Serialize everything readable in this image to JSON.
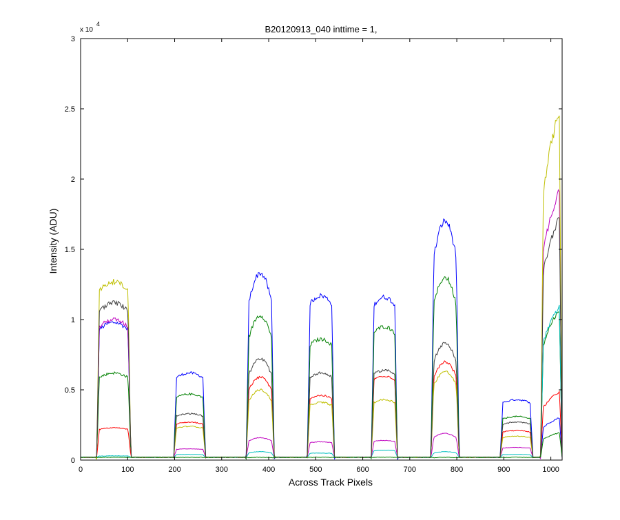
{
  "chart_data": {
    "type": "line",
    "title": "B20120913_040 inttime = 1,",
    "xlabel": "Across Track Pixels",
    "ylabel": "Intensity (ADU)",
    "y_multiplier_label": "x 10",
    "y_multiplier_exponent": "4",
    "xlim": [
      0,
      1024
    ],
    "ylim": [
      0,
      3
    ],
    "xticks": [
      0,
      100,
      200,
      300,
      400,
      500,
      600,
      700,
      800,
      900,
      1000
    ],
    "yticks": [
      0,
      0.5,
      1,
      1.5,
      2,
      2.5,
      3
    ],
    "ytick_labels": [
      "0",
      "0.5",
      "1",
      "1.5",
      "2",
      "2.5",
      "3"
    ],
    "baseline": 0.02,
    "blocks": [
      {
        "x0": 34,
        "x1": 107,
        "shape": "flat"
      },
      {
        "x0": 198,
        "x1": 266,
        "shape": "flat"
      },
      {
        "x0": 352,
        "x1": 412,
        "shape": "peak"
      },
      {
        "x0": 482,
        "x1": 540,
        "shape": "flat"
      },
      {
        "x0": 618,
        "x1": 674,
        "shape": "flat"
      },
      {
        "x0": 745,
        "x1": 805,
        "shape": "peak"
      },
      {
        "x0": 892,
        "x1": 962,
        "shape": "flat"
      },
      {
        "x0": 978,
        "x1": 1024,
        "shape": "rise"
      }
    ],
    "series": [
      {
        "color": "#0000ff",
        "levels": [
          0.98,
          0.62,
          1.33,
          1.17,
          1.16,
          1.7,
          0.43,
          0.31
        ]
      },
      {
        "color": "#008000",
        "levels": [
          0.62,
          0.47,
          1.03,
          0.86,
          0.95,
          1.3,
          0.31,
          1.1
        ]
      },
      {
        "color": "#ff0000",
        "levels": [
          0.23,
          0.27,
          0.59,
          0.46,
          0.6,
          0.7,
          0.21,
          0.5
        ]
      },
      {
        "color": "#00bfbf",
        "levels": [
          0.03,
          0.04,
          0.06,
          0.05,
          0.07,
          0.06,
          0.04,
          1.12
        ]
      },
      {
        "color": "#bf00bf",
        "levels": [
          1.0,
          0.08,
          0.16,
          0.13,
          0.14,
          0.19,
          0.09,
          1.98
        ]
      },
      {
        "color": "#bfbf00",
        "levels": [
          1.27,
          0.24,
          0.5,
          0.41,
          0.43,
          0.63,
          0.17,
          2.55
        ]
      },
      {
        "color": "#404040",
        "levels": [
          1.12,
          0.33,
          0.72,
          0.62,
          0.64,
          0.83,
          0.27,
          1.78
        ]
      },
      {
        "color": "#008000",
        "levels": [
          0.02,
          0.02,
          0.02,
          0.02,
          0.02,
          0.02,
          0.02,
          0.2
        ]
      }
    ]
  }
}
